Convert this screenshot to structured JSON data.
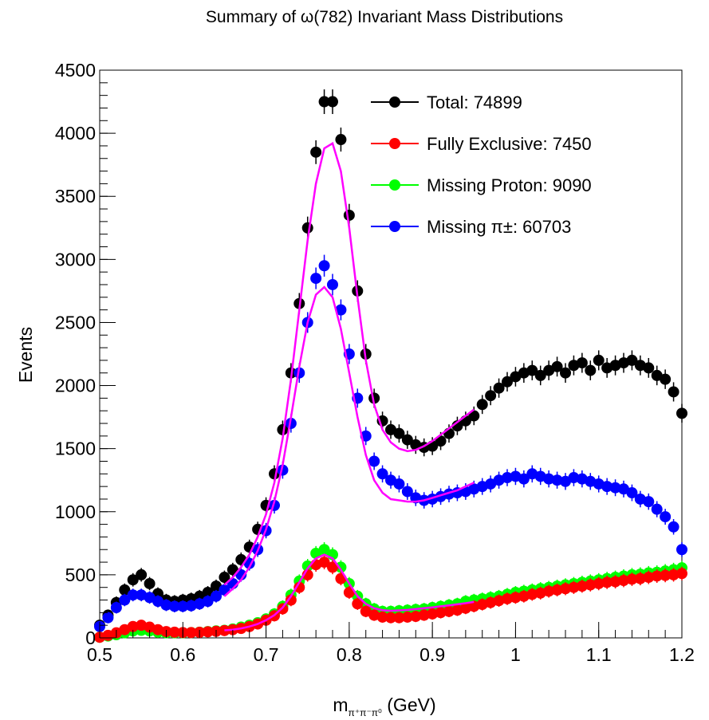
{
  "chart_data": {
    "type": "scatter",
    "title": "Summary of   ω(782) Invariant Mass Distributions",
    "xlabel": {
      "main": "m",
      "sub": "π⁺π⁻π⁰",
      "unit": " (GeV)"
    },
    "ylabel": "Events",
    "xlim": [
      0.5,
      1.2
    ],
    "ylim": [
      0,
      4500
    ],
    "x_ticks": [
      "0.5",
      "0.6",
      "0.7",
      "0.8",
      "0.9",
      "1",
      "1.1",
      "1.2"
    ],
    "y_ticks": [
      "0",
      "500",
      "1000",
      "1500",
      "2000",
      "2500",
      "3000",
      "3500",
      "4000",
      "4500"
    ],
    "grid": false,
    "legend_position": "top-right",
    "legend": [
      {
        "label": "Total: 74899",
        "color": "#000000"
      },
      {
        "label": "Fully Exclusive: 7450",
        "color": "#ff0000"
      },
      {
        "label": "Missing Proton: 9090",
        "color": "#00ff00"
      },
      {
        "label": "Missing   π±: 60703",
        "color": "#0000ff"
      }
    ],
    "series": [
      {
        "name": "Total: 74899",
        "color": "#000000",
        "x": [
          0.5,
          0.51,
          0.52,
          0.53,
          0.54,
          0.55,
          0.56,
          0.57,
          0.58,
          0.59,
          0.6,
          0.61,
          0.62,
          0.63,
          0.64,
          0.65,
          0.66,
          0.67,
          0.68,
          0.69,
          0.7,
          0.71,
          0.72,
          0.73,
          0.74,
          0.75,
          0.76,
          0.77,
          0.78,
          0.79,
          0.8,
          0.81,
          0.82,
          0.83,
          0.84,
          0.85,
          0.86,
          0.87,
          0.88,
          0.89,
          0.9,
          0.91,
          0.92,
          0.93,
          0.94,
          0.95,
          0.96,
          0.97,
          0.98,
          0.99,
          1.0,
          1.01,
          1.02,
          1.03,
          1.04,
          1.05,
          1.06,
          1.07,
          1.08,
          1.09,
          1.1,
          1.11,
          1.12,
          1.13,
          1.14,
          1.15,
          1.16,
          1.17,
          1.18,
          1.19,
          1.2
        ],
        "y": [
          100,
          180,
          280,
          380,
          460,
          500,
          430,
          350,
          300,
          290,
          300,
          310,
          330,
          360,
          410,
          480,
          540,
          620,
          720,
          860,
          1050,
          1300,
          1650,
          2100,
          2650,
          3250,
          3850,
          4250,
          4250,
          3950,
          3350,
          2750,
          2250,
          1900,
          1720,
          1650,
          1620,
          1570,
          1530,
          1510,
          1520,
          1560,
          1620,
          1680,
          1720,
          1760,
          1850,
          1920,
          1980,
          2030,
          2070,
          2100,
          2120,
          2080,
          2120,
          2150,
          2100,
          2160,
          2180,
          2120,
          2200,
          2140,
          2160,
          2180,
          2200,
          2160,
          2140,
          2080,
          2050,
          1950,
          1780
        ]
      },
      {
        "name": "Missing   π±: 60703",
        "color": "#0000ff",
        "x": [
          0.5,
          0.51,
          0.52,
          0.53,
          0.54,
          0.55,
          0.56,
          0.57,
          0.58,
          0.59,
          0.6,
          0.61,
          0.62,
          0.63,
          0.64,
          0.65,
          0.66,
          0.67,
          0.68,
          0.69,
          0.7,
          0.71,
          0.72,
          0.73,
          0.74,
          0.75,
          0.76,
          0.77,
          0.78,
          0.79,
          0.8,
          0.81,
          0.82,
          0.83,
          0.84,
          0.85,
          0.86,
          0.87,
          0.88,
          0.89,
          0.9,
          0.91,
          0.92,
          0.93,
          0.94,
          0.95,
          0.96,
          0.97,
          0.98,
          0.99,
          1.0,
          1.01,
          1.02,
          1.03,
          1.04,
          1.05,
          1.06,
          1.07,
          1.08,
          1.09,
          1.1,
          1.11,
          1.12,
          1.13,
          1.14,
          1.15,
          1.16,
          1.17,
          1.18,
          1.19,
          1.2
        ],
        "y": [
          90,
          160,
          240,
          300,
          340,
          340,
          320,
          290,
          260,
          250,
          250,
          255,
          270,
          290,
          330,
          380,
          430,
          500,
          590,
          700,
          850,
          1050,
          1330,
          1700,
          2100,
          2500,
          2850,
          2950,
          2800,
          2600,
          2250,
          1900,
          1600,
          1400,
          1300,
          1250,
          1220,
          1160,
          1110,
          1090,
          1100,
          1120,
          1140,
          1150,
          1160,
          1180,
          1200,
          1220,
          1250,
          1270,
          1280,
          1260,
          1300,
          1280,
          1260,
          1250,
          1240,
          1270,
          1260,
          1240,
          1220,
          1200,
          1190,
          1180,
          1150,
          1100,
          1080,
          1020,
          960,
          880,
          700
        ]
      },
      {
        "name": "Missing Proton: 9090",
        "color": "#00ff00",
        "x": [
          0.5,
          0.51,
          0.52,
          0.53,
          0.54,
          0.55,
          0.56,
          0.57,
          0.58,
          0.59,
          0.6,
          0.61,
          0.62,
          0.63,
          0.64,
          0.65,
          0.66,
          0.67,
          0.68,
          0.69,
          0.7,
          0.71,
          0.72,
          0.73,
          0.74,
          0.75,
          0.76,
          0.77,
          0.78,
          0.79,
          0.8,
          0.81,
          0.82,
          0.83,
          0.84,
          0.85,
          0.86,
          0.87,
          0.88,
          0.89,
          0.9,
          0.91,
          0.92,
          0.93,
          0.94,
          0.95,
          0.96,
          0.97,
          0.98,
          0.99,
          1.0,
          1.01,
          1.02,
          1.03,
          1.04,
          1.05,
          1.06,
          1.07,
          1.08,
          1.09,
          1.1,
          1.11,
          1.12,
          1.13,
          1.14,
          1.15,
          1.16,
          1.17,
          1.18,
          1.19,
          1.2
        ],
        "y": [
          5,
          15,
          25,
          40,
          55,
          60,
          55,
          45,
          40,
          40,
          40,
          42,
          45,
          50,
          55,
          60,
          70,
          85,
          100,
          120,
          150,
          190,
          250,
          340,
          450,
          570,
          670,
          700,
          660,
          560,
          430,
          330,
          270,
          230,
          210,
          210,
          215,
          220,
          225,
          230,
          240,
          250,
          260,
          270,
          290,
          300,
          310,
          320,
          330,
          345,
          360,
          370,
          380,
          390,
          400,
          410,
          420,
          430,
          440,
          450,
          460,
          470,
          480,
          490,
          500,
          505,
          515,
          520,
          530,
          540,
          555
        ]
      },
      {
        "name": "Fully Exclusive: 7450",
        "color": "#ff0000",
        "x": [
          0.5,
          0.51,
          0.52,
          0.53,
          0.54,
          0.55,
          0.56,
          0.57,
          0.58,
          0.59,
          0.6,
          0.61,
          0.62,
          0.63,
          0.64,
          0.65,
          0.66,
          0.67,
          0.68,
          0.69,
          0.7,
          0.71,
          0.72,
          0.73,
          0.74,
          0.75,
          0.76,
          0.77,
          0.78,
          0.79,
          0.8,
          0.81,
          0.82,
          0.83,
          0.84,
          0.85,
          0.86,
          0.87,
          0.88,
          0.89,
          0.9,
          0.91,
          0.92,
          0.93,
          0.94,
          0.95,
          0.96,
          0.97,
          0.98,
          0.99,
          1.0,
          1.01,
          1.02,
          1.03,
          1.04,
          1.05,
          1.06,
          1.07,
          1.08,
          1.09,
          1.1,
          1.11,
          1.12,
          1.13,
          1.14,
          1.15,
          1.16,
          1.17,
          1.18,
          1.19,
          1.2
        ],
        "y": [
          5,
          20,
          40,
          65,
          90,
          100,
          85,
          65,
          50,
          45,
          42,
          42,
          44,
          48,
          52,
          58,
          65,
          75,
          90,
          110,
          140,
          175,
          230,
          300,
          400,
          500,
          580,
          600,
          560,
          470,
          360,
          270,
          210,
          180,
          165,
          160,
          160,
          165,
          170,
          180,
          190,
          200,
          210,
          220,
          235,
          250,
          265,
          280,
          295,
          310,
          320,
          330,
          345,
          355,
          370,
          380,
          390,
          400,
          410,
          420,
          430,
          440,
          445,
          455,
          465,
          470,
          480,
          490,
          495,
          500,
          510
        ]
      }
    ],
    "fit_curves": [
      {
        "color": "#ff00ff",
        "x": [
          0.65,
          0.66,
          0.67,
          0.68,
          0.69,
          0.7,
          0.71,
          0.72,
          0.73,
          0.74,
          0.75,
          0.76,
          0.77,
          0.78,
          0.79,
          0.8,
          0.81,
          0.82,
          0.83,
          0.84,
          0.85,
          0.86,
          0.87,
          0.88,
          0.89,
          0.9,
          0.91,
          0.92,
          0.93,
          0.94,
          0.95
        ],
        "y": [
          420,
          480,
          560,
          660,
          800,
          980,
          1230,
          1580,
          2050,
          2600,
          3150,
          3600,
          3880,
          3920,
          3700,
          3250,
          2700,
          2200,
          1850,
          1650,
          1550,
          1500,
          1480,
          1490,
          1520,
          1560,
          1610,
          1660,
          1710,
          1760,
          1810
        ]
      },
      {
        "color": "#ff00ff",
        "x": [
          0.65,
          0.66,
          0.67,
          0.68,
          0.69,
          0.7,
          0.71,
          0.72,
          0.73,
          0.74,
          0.75,
          0.76,
          0.77,
          0.78,
          0.79,
          0.8,
          0.81,
          0.82,
          0.83,
          0.84,
          0.85,
          0.86,
          0.87,
          0.88,
          0.89,
          0.9,
          0.91,
          0.92,
          0.93,
          0.94,
          0.95
        ],
        "y": [
          330,
          390,
          460,
          560,
          690,
          860,
          1080,
          1370,
          1750,
          2150,
          2500,
          2720,
          2780,
          2700,
          2450,
          2100,
          1750,
          1450,
          1250,
          1150,
          1100,
          1090,
          1080,
          1080,
          1090,
          1110,
          1130,
          1150,
          1170,
          1200,
          1230
        ]
      },
      {
        "color": "#ff00ff",
        "x": [
          0.65,
          0.66,
          0.67,
          0.68,
          0.69,
          0.7,
          0.71,
          0.72,
          0.73,
          0.74,
          0.75,
          0.76,
          0.77,
          0.78,
          0.79,
          0.8,
          0.81,
          0.82,
          0.83,
          0.84,
          0.85,
          0.86,
          0.87,
          0.88,
          0.89,
          0.9,
          0.91,
          0.92,
          0.93,
          0.94,
          0.95
        ],
        "y": [
          60,
          65,
          75,
          90,
          110,
          140,
          180,
          240,
          330,
          440,
          550,
          630,
          660,
          630,
          540,
          430,
          330,
          270,
          235,
          220,
          215,
          218,
          222,
          228,
          235,
          242,
          250,
          258,
          266,
          275,
          285
        ]
      }
    ]
  }
}
